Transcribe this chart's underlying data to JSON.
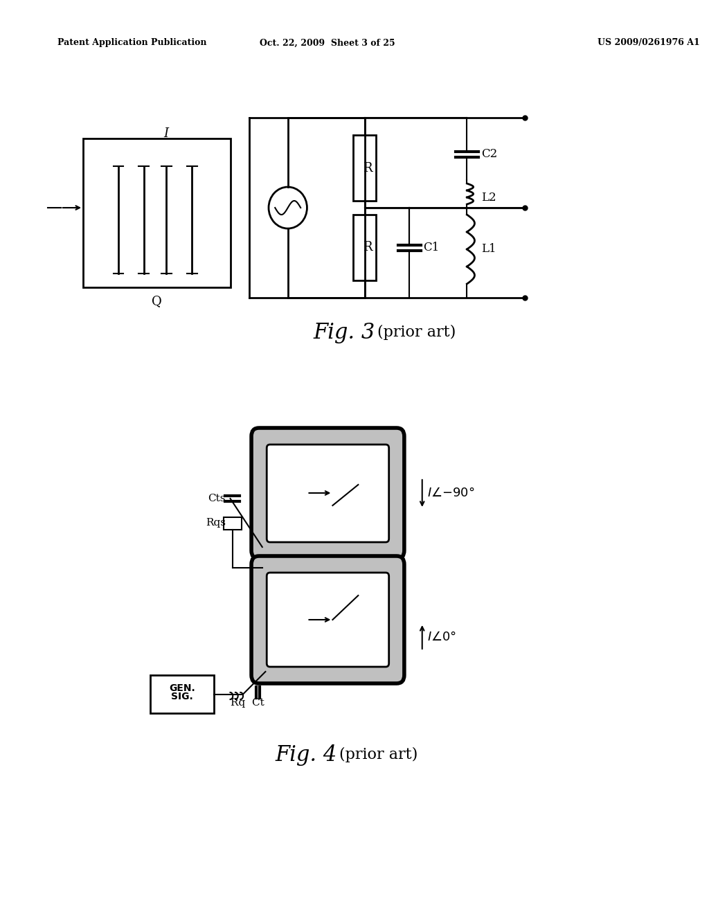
{
  "bg_color": "#ffffff",
  "header_left": "Patent Application Publication",
  "header_center": "Oct. 22, 2009  Sheet 3 of 25",
  "header_right": "US 2009/0261976 A1",
  "fig3_caption": "Fig. 3",
  "fig3_sub": "(prior art)",
  "fig4_caption": "Fig. 4",
  "fig4_sub": "(prior art)"
}
